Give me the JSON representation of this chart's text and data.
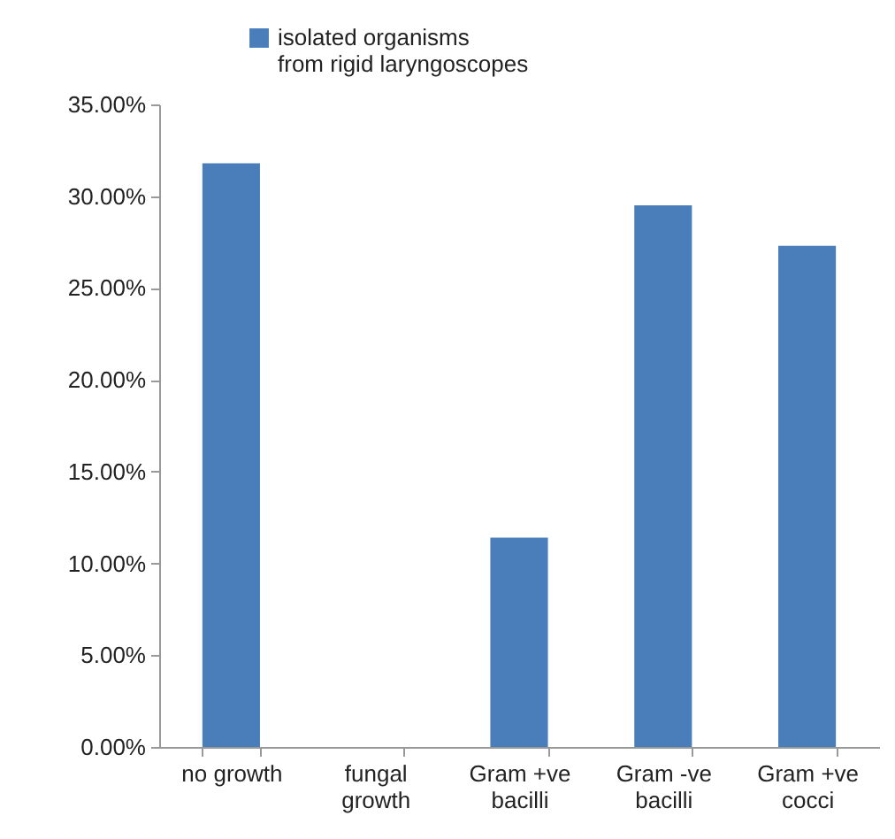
{
  "chart_data": {
    "type": "bar",
    "categories": [
      "no growth",
      "fungal growth",
      "Gram +ve bacilli",
      "Gram -ve bacilli",
      "Gram +ve cocci"
    ],
    "series": [
      {
        "name": "isolated organisms from rigid laryngoscopes",
        "color": "#4a7ebb",
        "values": [
          31.8,
          0,
          11.4,
          29.5,
          27.3
        ]
      }
    ],
    "ylim": [
      0,
      35
    ],
    "yticks": [
      {
        "value": 0,
        "label": "0.00%"
      },
      {
        "value": 5,
        "label": "5.00%"
      },
      {
        "value": 10,
        "label": "10.00%"
      },
      {
        "value": 15,
        "label": "15.00%"
      },
      {
        "value": 20,
        "label": "20.00%"
      },
      {
        "value": 25,
        "label": "25.00%"
      },
      {
        "value": 30,
        "label": "30.00%"
      },
      {
        "value": 35,
        "label": "35.00%"
      }
    ],
    "grid": false,
    "legend": "top"
  }
}
